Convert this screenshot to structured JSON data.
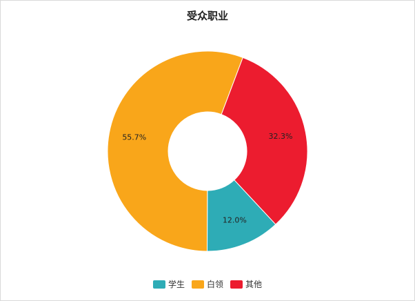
{
  "chart_data": {
    "type": "pie",
    "title": "受众职业",
    "donut": true,
    "legend_position": "bottom",
    "slices": [
      {
        "label": "学生",
        "value": 12.0,
        "display": "12.0%",
        "color": "#2eacb6"
      },
      {
        "label": "白领",
        "value": 55.7,
        "display": "55.7%",
        "color": "#f9a61a"
      },
      {
        "label": "其他",
        "value": 32.3,
        "display": "32.3%",
        "color": "#ec1c2f"
      }
    ]
  }
}
